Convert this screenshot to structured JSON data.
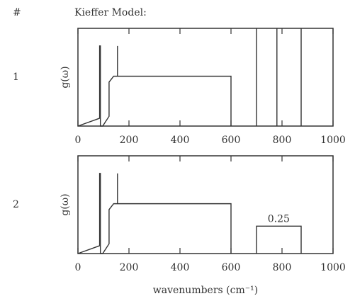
{
  "header": {
    "hash": "#",
    "title": "Kieffer Model:"
  },
  "chart_data": [
    {
      "type": "line",
      "label": "1",
      "ylabel": "g(ω)",
      "color": "#333333",
      "x": [
        0,
        85,
        85,
        88,
        88,
        97,
        122,
        122,
        140,
        600,
        600,
        null,
        155,
        155,
        null,
        700,
        700,
        null,
        780,
        780,
        null,
        875,
        875
      ],
      "values": [
        0,
        0.08,
        0.82,
        0.82,
        0,
        0,
        0.1,
        0.45,
        0.51,
        0.51,
        0,
        null,
        0.51,
        0.82,
        null,
        0,
        1,
        null,
        0,
        1,
        null,
        0,
        1
      ],
      "xlim": [
        0,
        1000
      ],
      "ylim": [
        0,
        1
      ],
      "xticks": [
        0,
        200,
        400,
        600,
        800,
        1000
      ]
    },
    {
      "type": "line",
      "label": "2",
      "ylabel": "g(ω)",
      "color": "#333333",
      "xlabel": "wavenumbers (cm⁻¹)",
      "x": [
        0,
        85,
        85,
        88,
        88,
        97,
        122,
        122,
        140,
        600,
        600,
        null,
        155,
        155,
        null,
        700,
        700,
        875,
        875
      ],
      "values": [
        0,
        0.08,
        0.82,
        0.82,
        0,
        0,
        0.1,
        0.45,
        0.51,
        0.51,
        0,
        null,
        0.51,
        0.82,
        null,
        0,
        0.28,
        0.28,
        0
      ],
      "xlim": [
        0,
        1000
      ],
      "ylim": [
        0,
        1
      ],
      "xticks": [
        0,
        200,
        400,
        600,
        800,
        1000
      ],
      "annotations": [
        {
          "text": "0.25",
          "x": 787,
          "y": 0.28
        }
      ]
    }
  ]
}
